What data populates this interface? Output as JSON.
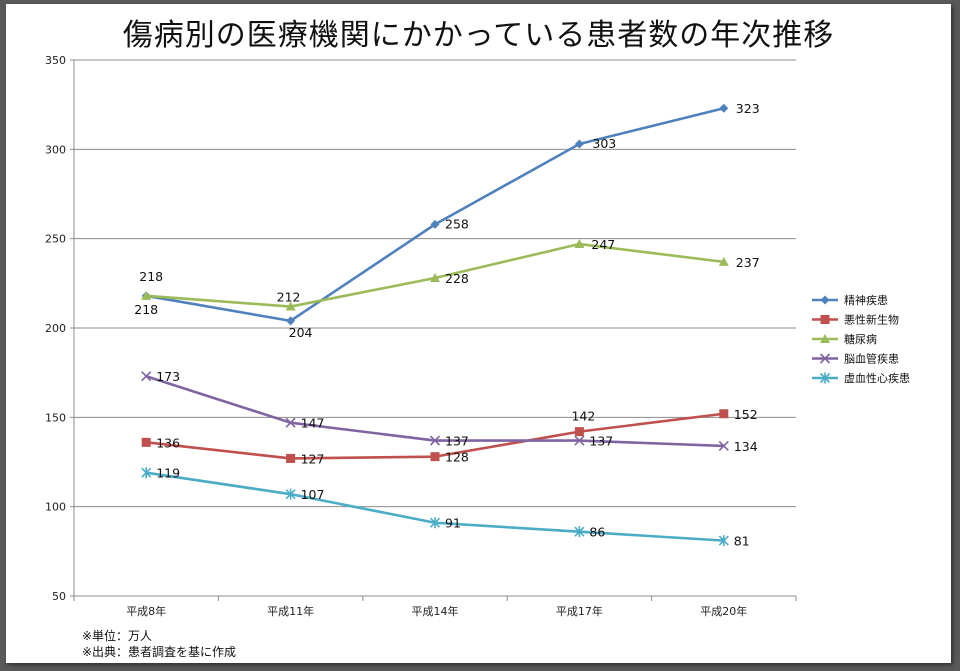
{
  "slide": {
    "title": "傷病別の医療機関にかかっている患者数の年次推移",
    "notes": [
      "※単位：万人",
      "※出典：患者調査を基に作成"
    ]
  },
  "chart_data": {
    "type": "line",
    "title": "傷病別の医療機関にかかっている患者数の年次推移",
    "xlabel": "",
    "ylabel": "",
    "categories": [
      "平成8年",
      "平成11年",
      "平成14年",
      "平成17年",
      "平成20年"
    ],
    "ylim": [
      50,
      350
    ],
    "yticks": [
      50,
      100,
      150,
      200,
      250,
      300,
      350
    ],
    "grid": true,
    "legend_position": "right",
    "series": [
      {
        "name": "精神疾患",
        "values": [
          218,
          204,
          258,
          303,
          323
        ],
        "color": "#4F81BD",
        "marker": "diamond"
      },
      {
        "name": "悪性新生物",
        "values": [
          136,
          127,
          128,
          142,
          152
        ],
        "color": "#C0504D",
        "marker": "square"
      },
      {
        "name": "糖尿病",
        "values": [
          218,
          212,
          228,
          247,
          237
        ],
        "color": "#9BBB59",
        "marker": "triangle"
      },
      {
        "name": "脳血管疾患",
        "values": [
          173,
          147,
          137,
          137,
          134
        ],
        "color": "#8064A2",
        "marker": "x"
      },
      {
        "name": "虚血性心疾患",
        "values": [
          119,
          107,
          91,
          86,
          81
        ],
        "color": "#4BACC6",
        "marker": "star"
      }
    ]
  }
}
